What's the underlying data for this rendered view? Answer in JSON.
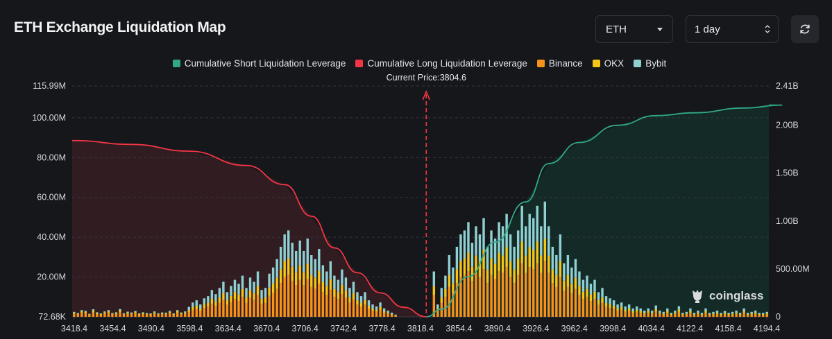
{
  "header": {
    "title": "ETH Exchange Liquidation Map",
    "asset_select": "ETH",
    "range_select": "1 day"
  },
  "watermark": "coinglass",
  "colors": {
    "short": "#2fa98a",
    "long": "#f23645",
    "binance": "#f7931a",
    "okx": "#f5c518",
    "bybit": "#8fd0d2"
  },
  "chart_data": {
    "type": "bar",
    "title": "ETH Exchange Liquidation Map",
    "legend": [
      "Cumulative Short Liquidation Leverage",
      "Cumulative Long Liquidation Leverage",
      "Binance",
      "OKX",
      "Bybit"
    ],
    "legend_position": "top-center",
    "current_price_label": "Current Price:3804.6",
    "current_price": 3804.6,
    "y_left_ticks": [
      "115.99M",
      "100.00M",
      "80.00M",
      "60.00M",
      "40.00M",
      "20.00M",
      "72.68K"
    ],
    "y_left_range": [
      0.07268,
      115.99
    ],
    "y_left_unit": "M",
    "y_right_ticks": [
      "2.41B",
      "2.00B",
      "1.50B",
      "1.00B",
      "500.00M",
      "0"
    ],
    "y_right_range": [
      0,
      2.41
    ],
    "y_right_unit": "B",
    "x_ticks": [
      "3418.4",
      "3454.4",
      "3490.4",
      "3598.4",
      "3634.4",
      "3670.4",
      "3706.4",
      "3742.4",
      "3778.4",
      "3818.4",
      "3854.4",
      "3890.4",
      "3926.4",
      "3962.4",
      "3998.4",
      "4034.4",
      "4122.4",
      "4158.4",
      "4194.4"
    ],
    "grid": true,
    "series": [
      {
        "name": "Binance",
        "stack": [
          1.5,
          1.2,
          2.0,
          1.8,
          1.0,
          2.2,
          1.4,
          1.0,
          1.6,
          2.0,
          1.2,
          1.4,
          2.3,
          1.1,
          1.5,
          1.3,
          1.7,
          1.0,
          1.4,
          1.2,
          1.0,
          1.6,
          1.1,
          1.3,
          1.2,
          1.8,
          1.0,
          2.0,
          1.3,
          1.6,
          2.4,
          3.5,
          4.0,
          3.0,
          4.5,
          5.0,
          6.5,
          5.5,
          7.0,
          8.5,
          6.0,
          7.5,
          9.0,
          8.0,
          10.0,
          7.0,
          9.5,
          8.5,
          11.0,
          6.5,
          7.0,
          10.5,
          12.0,
          14.0,
          17.0,
          20.0,
          21.0,
          18.0,
          16.0,
          18.5,
          16.0,
          19.0,
          15.0,
          14.0,
          16.5,
          12.5,
          11.0,
          13.5,
          10.0,
          9.0,
          11.5,
          9.5,
          7.0,
          8.5,
          6.0,
          5.0,
          6.0,
          4.0,
          3.0,
          2.5,
          3.5,
          2.0,
          1.5,
          1.0,
          0.5,
          0.0,
          0.0,
          0.0,
          0.0,
          0.0,
          0.0,
          0.0,
          0.0,
          0.0,
          11.0,
          3.0,
          7.0,
          10.0,
          15.0,
          12.0,
          17.0,
          20.0,
          21.0,
          23.0,
          18.0,
          22.0,
          20.0,
          24.0,
          17.0,
          21.0,
          19.0,
          23.0,
          22.0,
          25.0,
          20.0,
          17.0,
          21.0,
          27.0,
          22.0,
          25.0,
          24.0,
          27.0,
          22.0,
          28.0,
          22.0,
          17.0,
          15.0,
          20.0,
          13.0,
          15.0,
          12.0,
          14.0,
          11.0,
          9.0,
          10.0,
          8.0,
          9.0,
          6.0,
          7.0,
          5.0,
          4.5,
          4.0,
          3.0,
          3.5,
          2.5,
          3.0,
          2.0,
          2.5,
          2.0,
          1.5,
          2.0,
          1.5,
          2.8,
          1.5,
          1.2,
          2.0,
          1.0,
          1.5,
          2.6,
          1.0,
          1.2,
          2.0,
          1.0,
          1.5,
          1.0,
          2.0,
          1.0,
          1.2,
          1.5,
          1.0,
          1.4,
          1.0,
          1.2,
          1.5,
          1.0,
          2.0,
          1.0,
          1.2,
          1.5,
          1.0,
          1.0,
          1.2
        ]
      },
      {
        "name": "OKX",
        "stack": [
          0.6,
          0.4,
          0.8,
          0.7,
          0.3,
          0.9,
          0.5,
          0.4,
          0.6,
          0.8,
          0.4,
          0.5,
          0.9,
          0.4,
          0.6,
          0.5,
          0.7,
          0.4,
          0.5,
          0.4,
          0.4,
          0.6,
          0.4,
          0.5,
          0.5,
          0.7,
          0.4,
          0.8,
          0.5,
          0.6,
          1.0,
          1.4,
          1.6,
          1.2,
          1.8,
          2.0,
          2.6,
          2.2,
          2.8,
          3.4,
          2.4,
          3.0,
          3.6,
          3.2,
          4.0,
          2.8,
          3.8,
          3.4,
          4.4,
          2.6,
          2.8,
          4.2,
          4.8,
          5.6,
          6.8,
          8.0,
          8.4,
          7.2,
          6.4,
          7.4,
          6.4,
          7.6,
          6.0,
          5.6,
          6.6,
          5.0,
          4.4,
          5.4,
          4.0,
          3.6,
          4.6,
          3.8,
          2.8,
          3.4,
          2.4,
          2.0,
          2.4,
          1.6,
          1.2,
          1.0,
          1.4,
          0.8,
          0.6,
          0.4,
          0.2,
          0.0,
          0.0,
          0.0,
          0.0,
          0.0,
          0.0,
          0.0,
          0.0,
          0.0,
          4.4,
          1.2,
          2.8,
          4.0,
          6.0,
          4.8,
          6.8,
          8.0,
          8.4,
          9.2,
          7.2,
          8.8,
          8.0,
          9.6,
          6.8,
          8.4,
          7.6,
          9.2,
          8.8,
          10.0,
          8.0,
          6.8,
          8.4,
          10.8,
          8.8,
          10.0,
          9.6,
          10.8,
          8.8,
          11.2,
          8.8,
          6.8,
          6.0,
          8.0,
          5.2,
          6.0,
          4.8,
          5.6,
          4.4,
          3.6,
          4.0,
          3.2,
          3.6,
          2.4,
          2.8,
          2.0,
          1.8,
          1.6,
          1.2,
          1.4,
          1.0,
          1.2,
          0.8,
          1.0,
          0.8,
          0.6,
          0.8,
          0.6,
          1.1,
          0.6,
          0.5,
          0.8,
          0.4,
          0.6,
          1.0,
          0.4,
          0.5,
          0.8,
          0.4,
          0.6,
          0.4,
          0.8,
          0.4,
          0.5,
          0.6,
          0.4,
          0.6,
          0.4,
          0.5,
          0.6,
          0.4,
          0.8,
          0.4,
          0.5,
          0.6,
          0.4,
          0.4,
          0.5
        ]
      },
      {
        "name": "Bybit",
        "stack": [
          0.4,
          0.3,
          0.6,
          0.5,
          0.2,
          0.7,
          0.4,
          0.3,
          0.5,
          0.6,
          0.3,
          0.4,
          0.7,
          0.3,
          0.5,
          0.4,
          0.5,
          0.3,
          0.4,
          0.3,
          0.3,
          0.5,
          0.3,
          0.4,
          0.4,
          0.5,
          0.3,
          0.6,
          0.4,
          0.5,
          1.6,
          2.3,
          2.7,
          2.0,
          3.0,
          3.4,
          4.4,
          3.7,
          4.7,
          5.7,
          4.0,
          5.0,
          6.0,
          5.4,
          6.7,
          4.7,
          6.4,
          5.7,
          7.4,
          4.4,
          4.7,
          7.0,
          8.0,
          9.4,
          11.4,
          13.4,
          14.0,
          12.0,
          10.7,
          12.4,
          10.7,
          12.7,
          10.0,
          9.4,
          11.0,
          8.4,
          7.4,
          9.0,
          6.7,
          6.0,
          7.7,
          6.4,
          4.7,
          5.7,
          4.0,
          3.4,
          4.0,
          2.7,
          2.0,
          1.7,
          2.3,
          1.4,
          1.0,
          0.7,
          0.4,
          0.0,
          0.0,
          0.0,
          0.0,
          0.0,
          0.0,
          0.0,
          0.0,
          0.0,
          7.4,
          2.0,
          4.7,
          6.7,
          10.0,
          8.0,
          11.4,
          13.4,
          14.0,
          15.4,
          12.0,
          14.7,
          13.4,
          16.0,
          11.4,
          14.0,
          12.7,
          15.4,
          14.7,
          16.7,
          13.4,
          11.4,
          14.0,
          18.0,
          14.7,
          16.7,
          16.0,
          18.0,
          14.7,
          18.7,
          14.7,
          11.4,
          10.0,
          13.4,
          8.7,
          10.0,
          8.0,
          9.4,
          7.4,
          6.0,
          6.7,
          5.4,
          6.0,
          4.0,
          4.7,
          3.4,
          3.0,
          2.7,
          2.0,
          2.3,
          1.7,
          2.0,
          1.4,
          1.7,
          1.4,
          1.0,
          1.4,
          1.0,
          1.8,
          1.0,
          0.8,
          1.4,
          0.6,
          1.0,
          1.7,
          0.6,
          0.8,
          1.4,
          0.6,
          1.0,
          0.6,
          1.4,
          0.6,
          0.8,
          1.0,
          0.6,
          0.9,
          0.6,
          0.8,
          1.0,
          0.6,
          1.4,
          0.6,
          0.8,
          1.0,
          0.6,
          0.6,
          0.8
        ]
      },
      {
        "name": "Cumulative Long Liquidation Leverage",
        "axis": "right",
        "x_index": [
          0,
          15,
          30,
          45,
          55,
          62,
          68,
          74,
          80,
          86,
          92
        ],
        "values": [
          1.84,
          1.8,
          1.73,
          1.58,
          1.38,
          1.05,
          0.72,
          0.46,
          0.25,
          0.1,
          0.0
        ]
      },
      {
        "name": "Cumulative Short Liquidation Leverage",
        "axis": "right",
        "x_index": [
          92,
          96,
          103,
          110,
          118,
          124,
          132,
          142,
          152,
          162,
          175,
          185
        ],
        "values": [
          0.0,
          0.08,
          0.42,
          0.78,
          1.2,
          1.6,
          1.82,
          2.0,
          2.1,
          2.13,
          2.18,
          2.21
        ]
      }
    ]
  }
}
